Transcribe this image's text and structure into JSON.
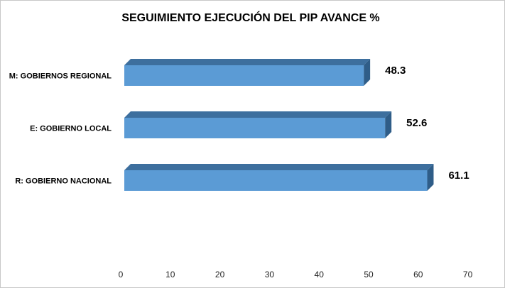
{
  "chart_data": {
    "type": "bar",
    "orientation": "horizontal",
    "title": "SEGUIMIENTO EJECUCIÓN DEL PIP AVANCE %",
    "categories": [
      "M: GOBIERNOS  REGIONAL",
      "E: GOBIERNO  LOCAL",
      "R: GOBIERNO  NACIONAL"
    ],
    "values": [
      48.3,
      52.6,
      61.1
    ],
    "data_labels": [
      "48.3",
      "52.6",
      "61.1"
    ],
    "xlim": [
      0,
      70
    ],
    "x_ticks": [
      "0",
      "10",
      "20",
      "30",
      "40",
      "50",
      "60",
      "70"
    ],
    "grid": false,
    "legend": "none",
    "bar_style": "3d",
    "colors": {
      "bar_front": "#5b9bd5",
      "bar_top": "#3d6f9e",
      "bar_side": "#2f5d88"
    }
  }
}
